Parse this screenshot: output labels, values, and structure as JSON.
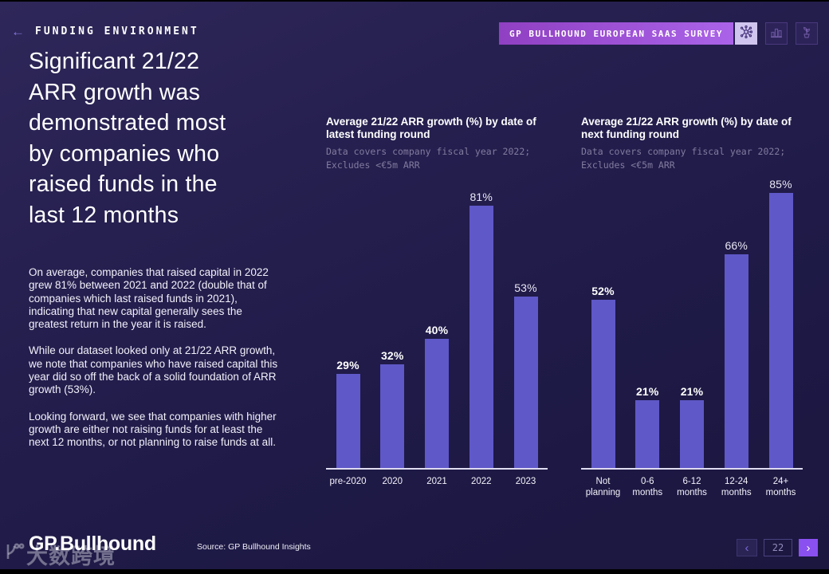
{
  "header": {
    "section_label": "FUNDING ENVIRONMENT",
    "title": "Significant 21/22\nARR growth was\ndemonstrated most\nby companies who\nraised funds in the\nlast 12 months",
    "badge_label": "GP BULLHOUND EUROPEAN SAAS SURVEY"
  },
  "icons": {
    "back_arrow": "←",
    "chevron_left": "‹",
    "chevron_right": "›",
    "badge_tiles": [
      "network-icon",
      "bar-chart-icon",
      "plant-icon"
    ]
  },
  "left_panel": {
    "paragraphs": [
      "On average, companies that raised capital in 2022 grew 81% between 2021 and 2022 (double that of companies which last raised funds in 2021), indicating that new capital generally sees the greatest return in the year it is raised.",
      "While our dataset looked only at 21/22 ARR growth, we note that companies who have raised capital this year did so off the back of a solid foundation of ARR growth (53%).",
      "Looking forward, we see that companies with higher growth are either not raising funds for at least the next 12 months, or not planning to raise funds at all."
    ]
  },
  "chart_data": [
    {
      "type": "bar",
      "title": "Average 21/22 ARR growth (%) by date of\nlatest funding round",
      "subtitle": "Data covers company fiscal year 2022;\nExcludes <€5m ARR",
      "categories": [
        "pre-2020",
        "2020",
        "2021",
        "2022",
        "2023"
      ],
      "values": [
        29,
        32,
        40,
        81,
        53
      ],
      "data_labels": [
        "29%",
        "32%",
        "40%",
        "81%",
        "53%"
      ],
      "bold_labels": [
        true,
        true,
        true,
        false,
        false
      ],
      "ylim": [
        0,
        90
      ],
      "grid": false,
      "legend": "none",
      "bar_color": "#5f58c8"
    },
    {
      "type": "bar",
      "title": "Average 21/22 ARR growth (%) by date of\nnext funding round",
      "subtitle": "Data covers company fiscal year 2022;\nExcludes <€5m ARR",
      "categories": [
        "Not planning",
        "0-6 months",
        "6-12 months",
        "12-24 months",
        "24+ months"
      ],
      "values": [
        52,
        21,
        21,
        66,
        85
      ],
      "data_labels": [
        "52%",
        "21%",
        "21%",
        "66%",
        "85%"
      ],
      "bold_labels": [
        true,
        true,
        true,
        false,
        false
      ],
      "ylim": [
        0,
        90
      ],
      "grid": false,
      "legend": "none",
      "bar_color": "#5f58c8"
    }
  ],
  "footer": {
    "logo_text": "GP.Bullhound",
    "source": "Source: GP Bullhound Insights",
    "watermark_text": "大数跨境",
    "pagination": {
      "page": "22"
    }
  },
  "colors": {
    "background": "#241f4e",
    "bar": "#5f58c8",
    "accent_purple": "#8a50f0",
    "badge_gradient_start": "#9040c2",
    "badge_gradient_end": "#aa63e8"
  }
}
